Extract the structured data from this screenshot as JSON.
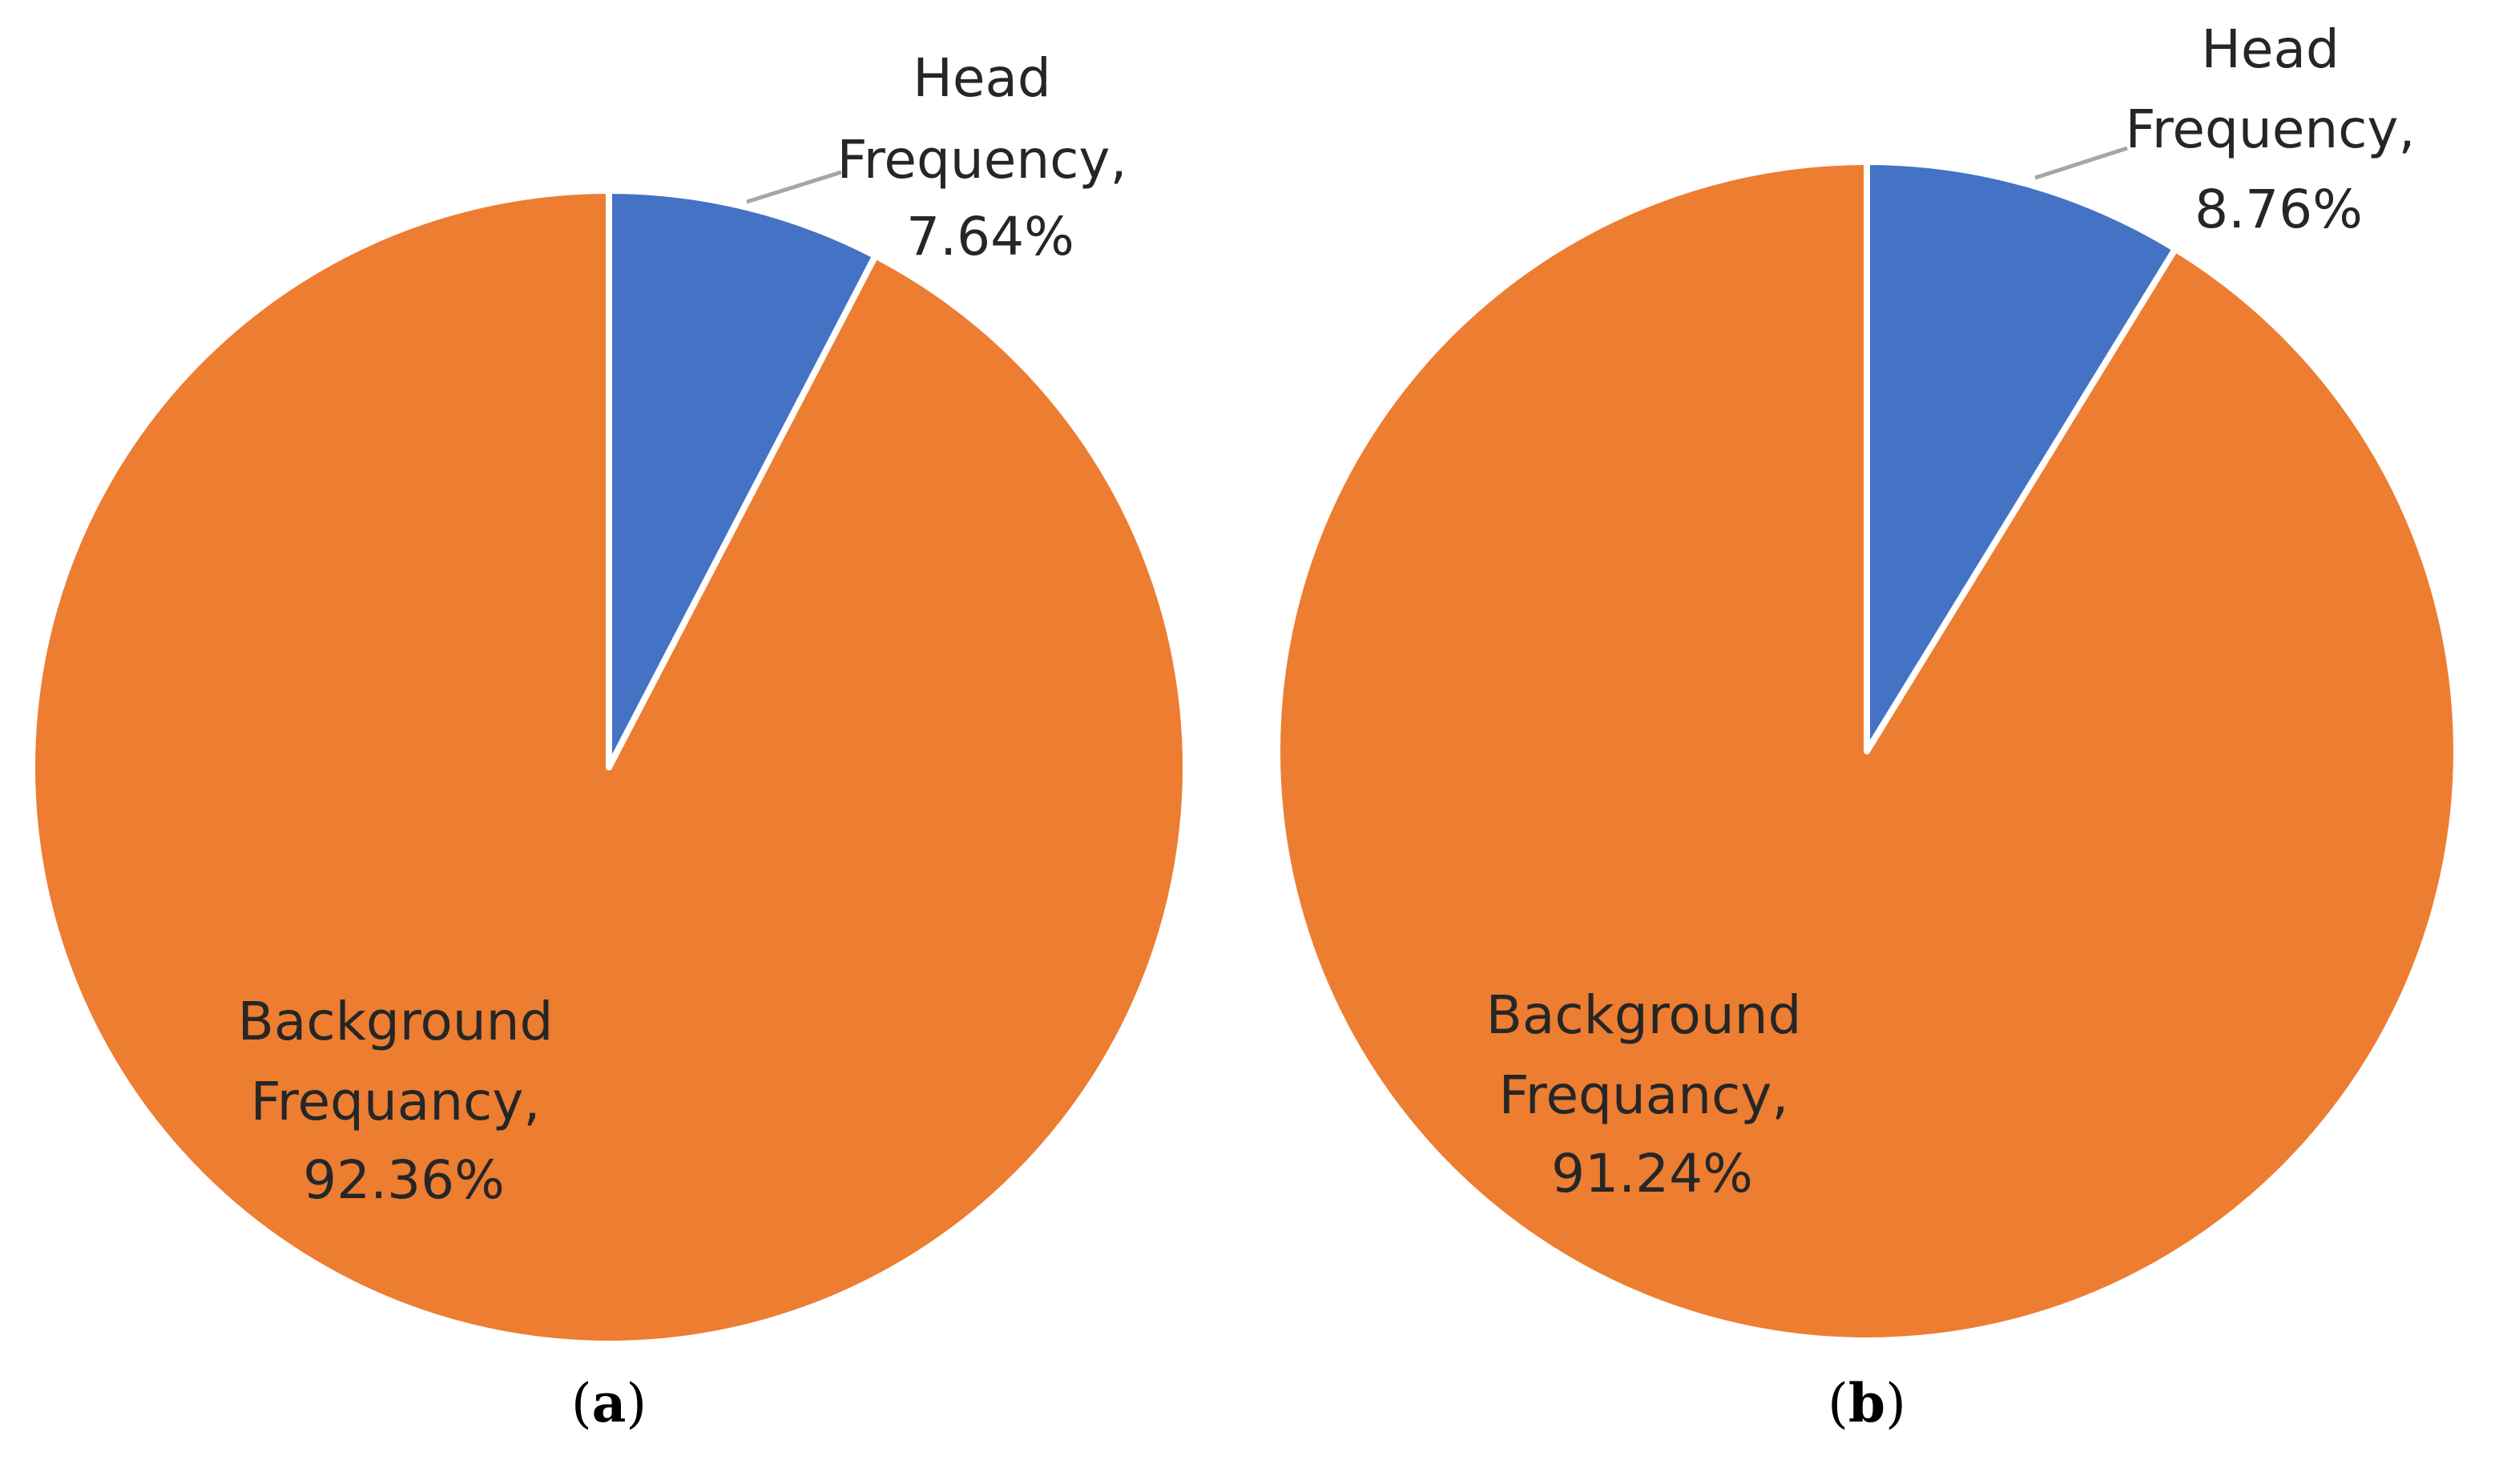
{
  "chart_data": [
    {
      "type": "pie",
      "panel_label": "a",
      "slices": [
        {
          "name": "Head Frequency",
          "value": 7.64,
          "label_lines": [
            "Head",
            "Frequency,",
            "7.64%"
          ],
          "color": "#4472C4"
        },
        {
          "name": "Background Frequancy",
          "value": 92.36,
          "label_lines": [
            "Background",
            "Frequancy,",
            "92.36%"
          ],
          "color": "#ED7D31"
        }
      ],
      "start_angle_deg": 0,
      "direction": "clockwise"
    },
    {
      "type": "pie",
      "panel_label": "b",
      "slices": [
        {
          "name": "Head Frequency",
          "value": 8.76,
          "label_lines": [
            "Head",
            "Frequency,",
            "8.76%"
          ],
          "color": "#4472C4"
        },
        {
          "name": "Background Frequancy",
          "value": 91.24,
          "label_lines": [
            "Background",
            "Frequancy,",
            "91.24%"
          ],
          "color": "#ED7D31"
        }
      ],
      "start_angle_deg": 0,
      "direction": "clockwise"
    }
  ],
  "colors": {
    "head": "#4472C4",
    "background": "#ED7D31",
    "slice_border": "#ffffff",
    "leader_line": "#A6A6A6"
  }
}
